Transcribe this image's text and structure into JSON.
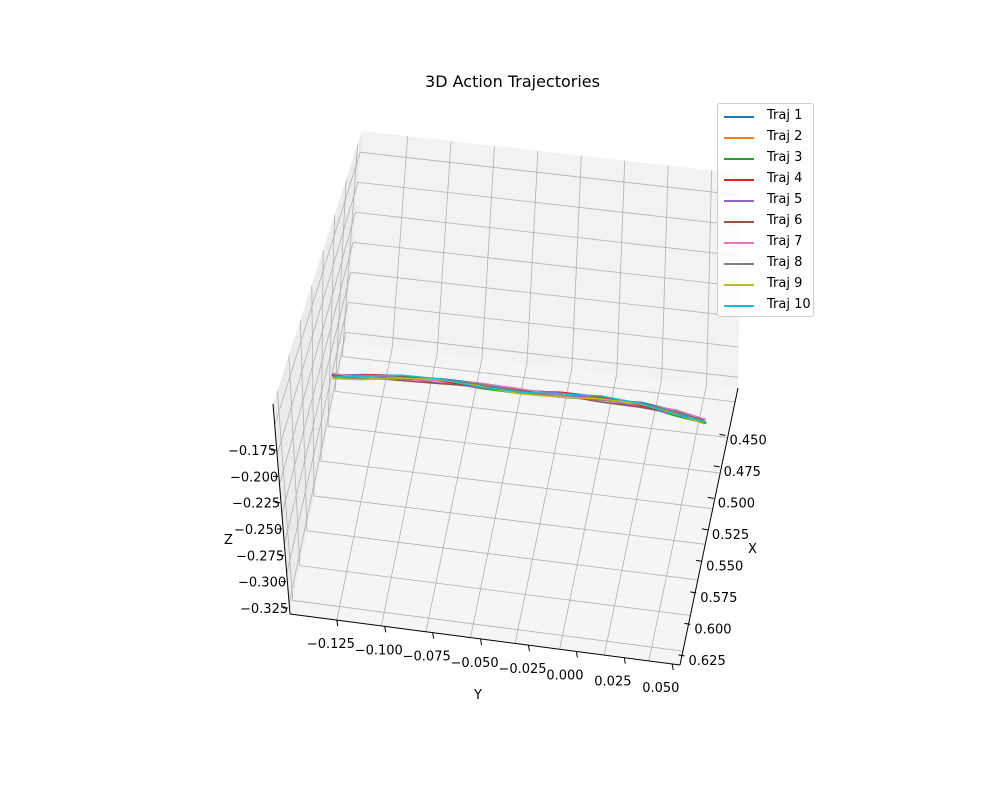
{
  "chart_data": {
    "type": "line",
    "projection": "3d",
    "title": "3D Action Trajectories",
    "xlabel": "X",
    "ylabel": "Y",
    "zlabel": "Z",
    "xlim": [
      0.44,
      0.63
    ],
    "ylim": [
      -0.145,
      0.055
    ],
    "zlim": [
      -0.335,
      -0.16
    ],
    "x_ticks": [
      "0.450",
      "0.475",
      "0.500",
      "0.525",
      "0.550",
      "0.575",
      "0.600",
      "0.625"
    ],
    "y_ticks": [
      "−0.125",
      "−0.100",
      "−0.075",
      "−0.050",
      "−0.025",
      "0.000",
      "0.025",
      "0.050"
    ],
    "z_ticks": [
      "−0.175",
      "−0.200",
      "−0.225",
      "−0.250",
      "−0.275",
      "−0.300",
      "−0.325"
    ],
    "grid": true,
    "legend_position": "top-right",
    "series": [
      {
        "name": "Traj 1",
        "color": "#1f77b4"
      },
      {
        "name": "Traj 2",
        "color": "#ff7f0e"
      },
      {
        "name": "Traj 3",
        "color": "#2ca02c"
      },
      {
        "name": "Traj 4",
        "color": "#d62728"
      },
      {
        "name": "Traj 5",
        "color": "#9467bd"
      },
      {
        "name": "Traj 6",
        "color": "#8c564b"
      },
      {
        "name": "Traj 7",
        "color": "#e377c2"
      },
      {
        "name": "Traj 8",
        "color": "#7f7f7f"
      },
      {
        "name": "Traj 9",
        "color": "#bcbd22"
      },
      {
        "name": "Traj 10",
        "color": "#17becf"
      }
    ]
  }
}
